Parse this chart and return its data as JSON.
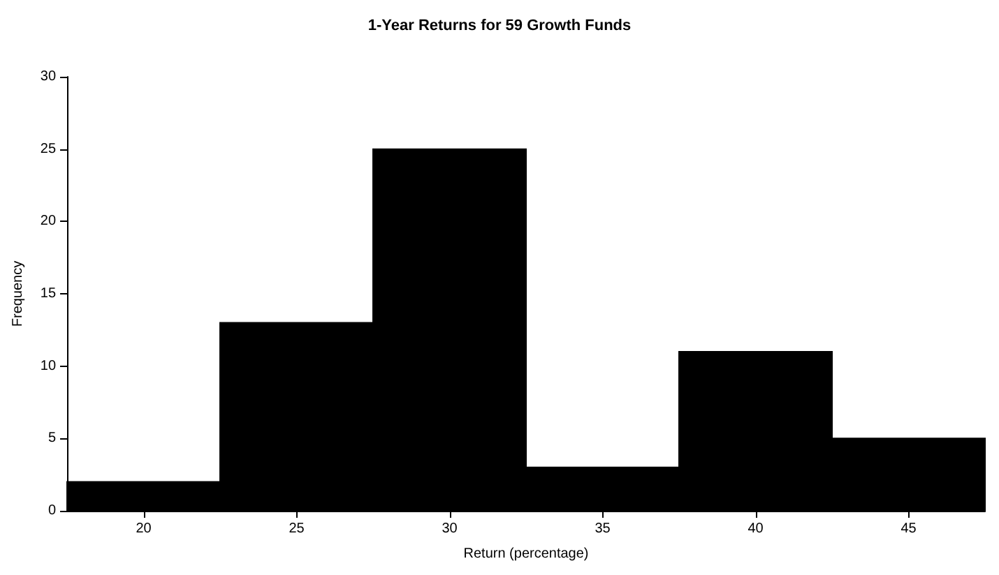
{
  "chart_data": {
    "type": "histogram",
    "title": "1-Year Returns for 59 Growth Funds",
    "xlabel": "Return (percentage)",
    "ylabel": "Frequency",
    "bins": [
      17.5,
      22.5,
      27.5,
      32.5,
      37.5,
      42.5,
      47.5
    ],
    "values": [
      2,
      13,
      25,
      3,
      11,
      5
    ],
    "color": "#000000",
    "xlim": [
      17.5,
      47.5
    ],
    "xticks": [
      20,
      25,
      30,
      35,
      40,
      45
    ],
    "ylim": [
      0,
      30
    ],
    "yticks": [
      0,
      5,
      10,
      15,
      20,
      25,
      30
    ],
    "grid": false
  }
}
